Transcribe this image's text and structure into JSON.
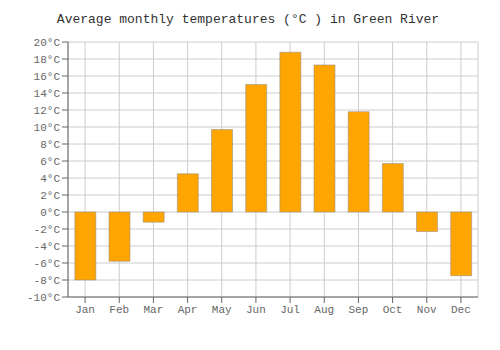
{
  "chart_data": {
    "type": "bar",
    "title": "Average monthly temperatures (°C ) in Green River",
    "categories": [
      "Jan",
      "Feb",
      "Mar",
      "Apr",
      "May",
      "Jun",
      "Jul",
      "Aug",
      "Sep",
      "Oct",
      "Nov",
      "Dec"
    ],
    "values": [
      -8.0,
      -5.8,
      -1.2,
      4.5,
      9.7,
      15.0,
      18.8,
      17.3,
      11.8,
      5.7,
      -2.3,
      -7.5
    ],
    "color": "#FFA500",
    "ylim": [
      -10,
      20
    ],
    "yticks": [
      {
        "value": -10,
        "label": "-10°C"
      },
      {
        "value": -8,
        "label": "-8°C"
      },
      {
        "value": -6,
        "label": "-6°C"
      },
      {
        "value": -4,
        "label": "-4°C"
      },
      {
        "value": -2,
        "label": "-2°C"
      },
      {
        "value": 0,
        "label": "0°C"
      },
      {
        "value": 2,
        "label": "2°C"
      },
      {
        "value": 4,
        "label": "4°C"
      },
      {
        "value": 6,
        "label": "6°C"
      },
      {
        "value": 8,
        "label": "8°C"
      },
      {
        "value": 10,
        "label": "10°C"
      },
      {
        "value": 12,
        "label": "12°C"
      },
      {
        "value": 14,
        "label": "14°C"
      },
      {
        "value": 16,
        "label": "16°C"
      },
      {
        "value": 18,
        "label": "18°C"
      },
      {
        "value": 20,
        "label": "20°C"
      }
    ],
    "grid": true
  }
}
